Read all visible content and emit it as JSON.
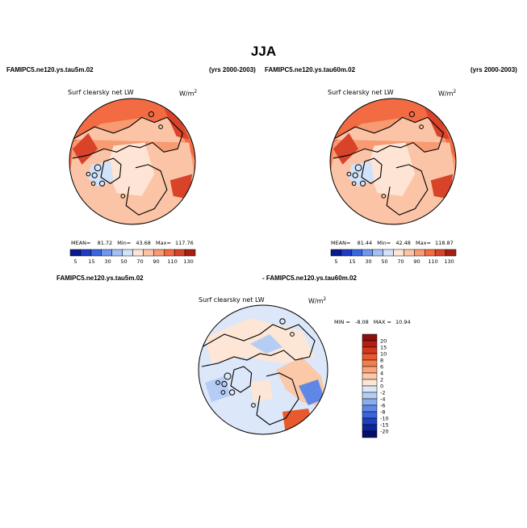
{
  "title": "JJA",
  "headers": {
    "left_case": "FAMIPC5.ne120.ys.tau5m.02",
    "left_years": "(yrs 2000-2003)",
    "right_case": "FAMIPC5.ne120.ys.tau60m.02",
    "right_years": "(yrs 2000-2003)",
    "diff_left": "FAMIPC5.ne120.ys.tau5m.02",
    "diff_right": "- FAMIPC5.ne120.ys.tau60m.02"
  },
  "panels": {
    "left": {
      "variable": "Surf clearsky net LW",
      "units": "W/m",
      "units_exp": "2",
      "mean_label": "MEAN=",
      "mean": "81.72",
      "min_label": "Min=",
      "min": "43.68",
      "max_label": "Max=",
      "max": "117.76"
    },
    "right": {
      "variable": "Surf clearsky net LW",
      "units": "W/m",
      "units_exp": "2",
      "mean_label": "MEAN=",
      "mean": "81.44",
      "min_label": "Min=",
      "min": "42.48",
      "max_label": "Max=",
      "max": "118.87"
    },
    "diff": {
      "variable": "Surf clearsky net LW",
      "units": "W/m",
      "units_exp": "2",
      "min_label": "MIN =",
      "min": "-8.08",
      "max_label": "MAX =",
      "max": "10.94"
    }
  },
  "chart_data": [
    {
      "type": "heatmap",
      "projection": "polar-stereographic",
      "title": "Surf clearsky net LW",
      "case": "FAMIPC5.ne120.ys.tau5m.02",
      "units": "W/m2",
      "mean": 81.72,
      "min": 43.68,
      "max": 117.76,
      "colorbar_levels": [
        5,
        15,
        30,
        50,
        70,
        90,
        110,
        130
      ],
      "colorbar_colors": [
        "#0a1a8c",
        "#1c3cc8",
        "#3a66e0",
        "#6f97ee",
        "#a3c1f5",
        "#d2e2f9",
        "#fde4d4",
        "#fbc4a6",
        "#f89a72",
        "#f26b42",
        "#d8432a",
        "#a81e14"
      ]
    },
    {
      "type": "heatmap",
      "projection": "polar-stereographic",
      "title": "Surf clearsky net LW",
      "case": "FAMIPC5.ne120.ys.tau60m.02",
      "units": "W/m2",
      "mean": 81.44,
      "min": 42.48,
      "max": 118.87,
      "colorbar_levels": [
        5,
        15,
        30,
        50,
        70,
        90,
        110,
        130
      ],
      "colorbar_colors": [
        "#0a1a8c",
        "#1c3cc8",
        "#3a66e0",
        "#6f97ee",
        "#a3c1f5",
        "#d2e2f9",
        "#fde4d4",
        "#fbc4a6",
        "#f89a72",
        "#f26b42",
        "#d8432a",
        "#a81e14"
      ]
    },
    {
      "type": "heatmap",
      "projection": "polar-stereographic",
      "title": "Surf clearsky net LW",
      "case": "FAMIPC5.ne120.ys.tau5m.02 - FAMIPC5.ne120.ys.tau60m.02",
      "units": "W/m2",
      "min": -8.08,
      "max": 10.94,
      "colorbar_levels": [
        20,
        15,
        10,
        8,
        6,
        4,
        2,
        0,
        -2,
        -4,
        -6,
        -8,
        -10,
        -15,
        -20
      ],
      "colorbar_colors": [
        "#8e0d0d",
        "#b51d12",
        "#d2381c",
        "#e8592e",
        "#f37e4c",
        "#f8a47a",
        "#fbc8a8",
        "#fde6d6",
        "#dce7f9",
        "#b5cdf4",
        "#8aadee",
        "#5f88e6",
        "#3a63dc",
        "#1d3fc4",
        "#0c2497",
        "#040f66"
      ]
    }
  ]
}
